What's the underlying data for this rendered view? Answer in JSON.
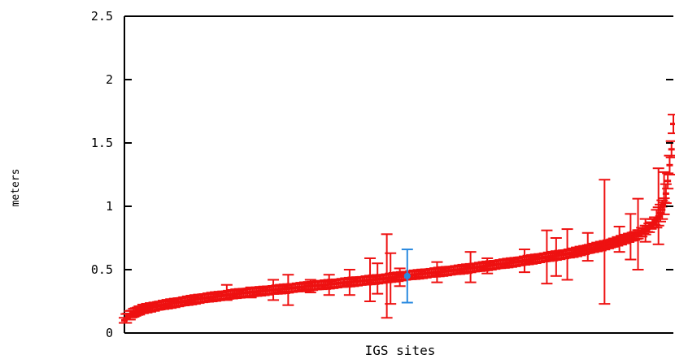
{
  "chart_data": {
    "type": "scatter",
    "title": "",
    "xlabel": "IGS sites",
    "ylabel": "meters",
    "ylim": [
      0,
      2.5
    ],
    "xlim": [
      0,
      295
    ],
    "y_ticks": [
      {
        "value": 0,
        "label": "0"
      },
      {
        "value": 0.5,
        "label": "0.5"
      },
      {
        "value": 1,
        "label": "1"
      },
      {
        "value": 1.5,
        "label": "1.5"
      },
      {
        "value": 2,
        "label": "2"
      },
      {
        "value": 2.5,
        "label": "2.5"
      }
    ],
    "grid": false,
    "legend": "none",
    "colors": {
      "main": "#ee1111",
      "highlight": "#2a8ae0",
      "axis": "#000000"
    },
    "series": [
      {
        "sorted_count": 296,
        "color": "#ee1111",
        "profile": [
          [
            0,
            0.1
          ],
          [
            2,
            0.13
          ],
          [
            5,
            0.16
          ],
          [
            10,
            0.19
          ],
          [
            20,
            0.22
          ],
          [
            40,
            0.27
          ],
          [
            60,
            0.31
          ],
          [
            80,
            0.34
          ],
          [
            100,
            0.37
          ],
          [
            120,
            0.4
          ],
          [
            140,
            0.43
          ],
          [
            150,
            0.45
          ],
          [
            180,
            0.5
          ],
          [
            210,
            0.56
          ],
          [
            240,
            0.63
          ],
          [
            260,
            0.7
          ],
          [
            275,
            0.77
          ],
          [
            282,
            0.83
          ],
          [
            287,
            0.92
          ],
          [
            290,
            1.0
          ],
          [
            292,
            1.2
          ],
          [
            294,
            1.45
          ],
          [
            295,
            1.65
          ]
        ],
        "error_bars": [
          {
            "x": 55,
            "y": 0.32,
            "err": 0.06
          },
          {
            "x": 68,
            "y": 0.32,
            "err": 0.04
          },
          {
            "x": 80,
            "y": 0.34,
            "err": 0.08
          },
          {
            "x": 88,
            "y": 0.34,
            "err": 0.12
          },
          {
            "x": 100,
            "y": 0.37,
            "err": 0.05
          },
          {
            "x": 110,
            "y": 0.38,
            "err": 0.08
          },
          {
            "x": 121,
            "y": 0.4,
            "err": 0.1
          },
          {
            "x": 132,
            "y": 0.42,
            "err": 0.17
          },
          {
            "x": 136,
            "y": 0.43,
            "err": 0.12
          },
          {
            "x": 141,
            "y": 0.45,
            "err": 0.33
          },
          {
            "x": 143,
            "y": 0.43,
            "err": 0.2
          },
          {
            "x": 148,
            "y": 0.44,
            "err": 0.07
          },
          {
            "x": 168,
            "y": 0.48,
            "err": 0.08
          },
          {
            "x": 186,
            "y": 0.52,
            "err": 0.12
          },
          {
            "x": 195,
            "y": 0.53,
            "err": 0.06
          },
          {
            "x": 215,
            "y": 0.57,
            "err": 0.09
          },
          {
            "x": 227,
            "y": 0.6,
            "err": 0.21
          },
          {
            "x": 232,
            "y": 0.6,
            "err": 0.15
          },
          {
            "x": 238,
            "y": 0.62,
            "err": 0.2
          },
          {
            "x": 249,
            "y": 0.68,
            "err": 0.11
          },
          {
            "x": 258,
            "y": 0.72,
            "err": 0.49
          },
          {
            "x": 266,
            "y": 0.74,
            "err": 0.1
          },
          {
            "x": 272,
            "y": 0.76,
            "err": 0.18
          },
          {
            "x": 276,
            "y": 0.78,
            "err": 0.28
          },
          {
            "x": 280,
            "y": 0.81,
            "err": 0.09
          },
          {
            "x": 287,
            "y": 1.0,
            "err": 0.3
          },
          {
            "x": 290,
            "y": 1.15,
            "err": 0.12
          }
        ]
      },
      {
        "color": "#2a8ae0",
        "points": [
          {
            "x": 152,
            "y": 0.45,
            "err": 0.21
          }
        ]
      }
    ]
  }
}
